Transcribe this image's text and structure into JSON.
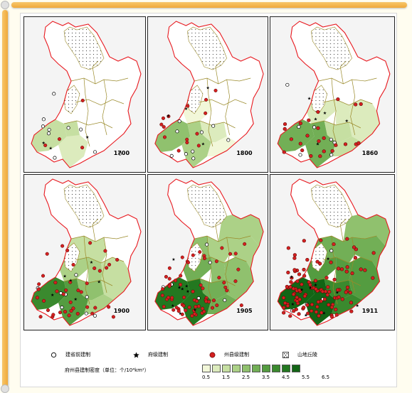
{
  "panels": [
    {
      "year": "1700",
      "fill_level": 1
    },
    {
      "year": "1800",
      "fill_level": 2
    },
    {
      "year": "1860",
      "fill_level": 3
    },
    {
      "year": "1900",
      "fill_level": 4
    },
    {
      "year": "1905",
      "fill_level": 5
    },
    {
      "year": "1911",
      "fill_level": 6
    }
  ],
  "legend": {
    "items": [
      {
        "label": "建省前建制",
        "icon": "open-circle-icon"
      },
      {
        "label": "府级建制",
        "icon": "star-icon"
      },
      {
        "label": "州县级建制",
        "icon": "red-dot-icon"
      },
      {
        "label": "山地丘陵",
        "icon": "dotted-square-icon"
      }
    ],
    "density_title": "府州县建制密度（单位：个/10⁴km²）",
    "ticks": [
      "0.5",
      "1.5",
      "2.5",
      "3.5",
      "4.5",
      "5.5",
      "6.5"
    ],
    "colors": [
      "#f2f7d9",
      "#dcebbd",
      "#c6dfa2",
      "#acd187",
      "#90c16e",
      "#72af56",
      "#549c40",
      "#3a8a2e",
      "#237820",
      "#126515"
    ]
  },
  "colors": {
    "border_red": "#e8191f",
    "border_olive": "#9a8a2a",
    "settlement_red": "#d42020",
    "accent_orange": "#f0a93a"
  }
}
